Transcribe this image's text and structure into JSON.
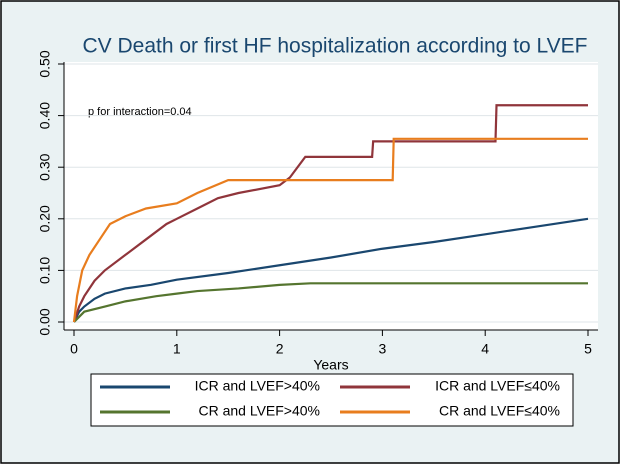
{
  "chart_data": {
    "type": "line",
    "title": "CV Death or first HF hospitalization according to LVEF",
    "annotation": "p for interaction=0.04",
    "x_label": "Years",
    "xlim": [
      0,
      5
    ],
    "xticks": [
      0,
      1,
      2,
      3,
      4,
      5
    ],
    "ylim": [
      0,
      0.5
    ],
    "yticks": [
      {
        "value": 0,
        "label": "0.00"
      },
      {
        "value": 0.1,
        "label": "0.10"
      },
      {
        "value": 0.2,
        "label": "0.20"
      },
      {
        "value": 0.3,
        "label": "0.30"
      },
      {
        "value": 0.4,
        "label": "0.40"
      },
      {
        "value": 0.5,
        "label": "0.50"
      }
    ],
    "grid": true,
    "series": [
      {
        "name": "ICR and LVEF>40%",
        "color": "#1a476f",
        "x": [
          0,
          0.05,
          0.1,
          0.2,
          0.3,
          0.5,
          0.75,
          1,
          1.5,
          2,
          2.5,
          3,
          3.5,
          4,
          4.5,
          5
        ],
        "values": [
          0,
          0.02,
          0.03,
          0.045,
          0.055,
          0.065,
          0.072,
          0.082,
          0.095,
          0.11,
          0.125,
          0.142,
          0.155,
          0.17,
          0.185,
          0.2
        ]
      },
      {
        "name": "ICR and LVEF≤40%",
        "color": "#90353b",
        "x": [
          0,
          0.05,
          0.1,
          0.2,
          0.3,
          0.5,
          0.7,
          0.9,
          1.0,
          1.2,
          1.4,
          1.6,
          2.0,
          2.1,
          2.25,
          2.9,
          2.91,
          4.1,
          4.11,
          5.0
        ],
        "values": [
          0,
          0.03,
          0.05,
          0.08,
          0.1,
          0.13,
          0.16,
          0.19,
          0.2,
          0.22,
          0.24,
          0.25,
          0.265,
          0.28,
          0.32,
          0.32,
          0.35,
          0.35,
          0.42,
          0.42
        ]
      },
      {
        "name": "CR and LVEF>40%",
        "color": "#55752f",
        "x": [
          0,
          0.1,
          0.3,
          0.5,
          0.8,
          1,
          1.2,
          1.6,
          2.0,
          2.3,
          5.0
        ],
        "values": [
          0,
          0.02,
          0.03,
          0.04,
          0.05,
          0.055,
          0.06,
          0.065,
          0.072,
          0.075,
          0.075
        ]
      },
      {
        "name": "CR and LVEF≤40%",
        "color": "#e87d1e",
        "x": [
          0,
          0.03,
          0.08,
          0.15,
          0.25,
          0.35,
          0.5,
          0.7,
          1.0,
          1.2,
          1.5,
          3.1,
          3.11,
          5.0
        ],
        "values": [
          0,
          0.05,
          0.1,
          0.13,
          0.16,
          0.19,
          0.205,
          0.22,
          0.23,
          0.25,
          0.275,
          0.275,
          0.355,
          0.355
        ]
      }
    ]
  }
}
